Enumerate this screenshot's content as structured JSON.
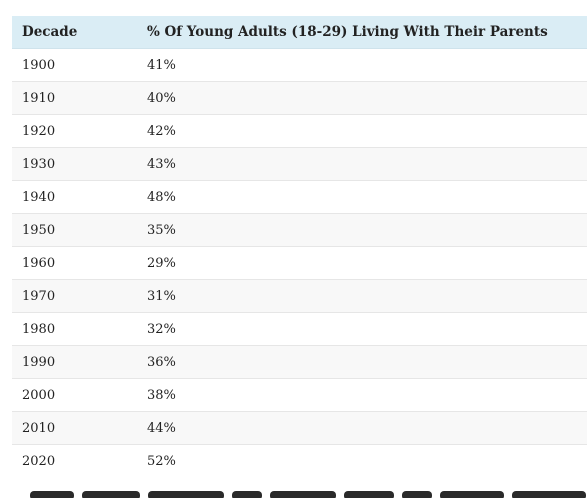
{
  "table": {
    "headers": {
      "decade": "Decade",
      "percent": "% Of Young Adults (18-29) Living With Their Parents"
    },
    "rows": [
      {
        "decade": "1900",
        "percent": "41%"
      },
      {
        "decade": "1910",
        "percent": "40%"
      },
      {
        "decade": "1920",
        "percent": "42%"
      },
      {
        "decade": "1930",
        "percent": "43%"
      },
      {
        "decade": "1940",
        "percent": "48%"
      },
      {
        "decade": "1950",
        "percent": "35%"
      },
      {
        "decade": "1960",
        "percent": "29%"
      },
      {
        "decade": "1970",
        "percent": "31%"
      },
      {
        "decade": "1980",
        "percent": "32%"
      },
      {
        "decade": "1990",
        "percent": "36%"
      },
      {
        "decade": "2000",
        "percent": "38%"
      },
      {
        "decade": "2010",
        "percent": "44%"
      },
      {
        "decade": "2020",
        "percent": "52%"
      }
    ]
  },
  "colors": {
    "header_bg": "#daedf5",
    "alt_row_bg": "#f8f8f8",
    "divider": "#e6e6e6"
  }
}
